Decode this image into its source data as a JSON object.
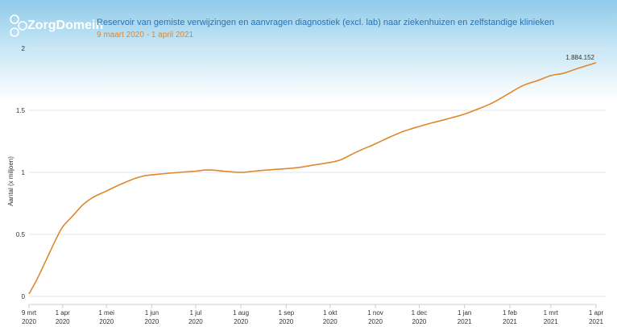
{
  "header": {
    "brand": "ZorgDomein",
    "title": "Reservoir van gemiste verwijzingen en aanvragen diagnostiek (excl. lab) naar ziekenhuizen en zelfstandige klinieken",
    "subtitle": "9 maart 2020 - 1 april 2021",
    "title_color": "#2a73b6",
    "subtitle_color": "#e0862c"
  },
  "chart_data": {
    "type": "line",
    "title": "Reservoir van gemiste verwijzingen en aanvragen diagnostiek (excl. lab) naar ziekenhuizen en zelfstandige klinieken",
    "subtitle": "9 maart 2020 - 1 april 2021",
    "xlabel": "",
    "ylabel": "Aantal (x miljoen)",
    "ylim": [
      0,
      2
    ],
    "yticks": [
      "0",
      "0.5",
      "1",
      "1.5",
      "2"
    ],
    "xlim": [
      "2020-03-09",
      "2021-04-01"
    ],
    "xticks": [
      {
        "date": "2020-03-09",
        "line1": "9 mrt",
        "line2": "2020"
      },
      {
        "date": "2020-04-01",
        "line1": "1 apr",
        "line2": "2020"
      },
      {
        "date": "2020-05-01",
        "line1": "1 mei",
        "line2": "2020"
      },
      {
        "date": "2020-06-01",
        "line1": "1 jun",
        "line2": "2020"
      },
      {
        "date": "2020-07-01",
        "line1": "1 jul",
        "line2": "2020"
      },
      {
        "date": "2020-08-01",
        "line1": "1 aug",
        "line2": "2020"
      },
      {
        "date": "2020-09-01",
        "line1": "1 sep",
        "line2": "2020"
      },
      {
        "date": "2020-10-01",
        "line1": "1 okt",
        "line2": "2020"
      },
      {
        "date": "2020-11-01",
        "line1": "1 nov",
        "line2": "2020"
      },
      {
        "date": "2020-12-01",
        "line1": "1 dec",
        "line2": "2020"
      },
      {
        "date": "2021-01-01",
        "line1": "1 jan",
        "line2": "2021"
      },
      {
        "date": "2021-02-01",
        "line1": "1 feb",
        "line2": "2021"
      },
      {
        "date": "2021-03-01",
        "line1": "1 mrt",
        "line2": "2021"
      },
      {
        "date": "2021-04-01",
        "line1": "1 apr",
        "line2": "2021"
      }
    ],
    "grid": true,
    "color": "#e0862c",
    "end_label": "1.884.152",
    "series": [
      {
        "x": [
          "2020-03-09",
          "2020-03-15",
          "2020-03-21",
          "2020-03-27",
          "2020-04-01",
          "2020-04-08",
          "2020-04-15",
          "2020-04-22",
          "2020-05-01",
          "2020-05-10",
          "2020-05-18",
          "2020-05-26",
          "2020-06-01",
          "2020-06-10",
          "2020-06-20",
          "2020-07-01",
          "2020-07-10",
          "2020-07-20",
          "2020-08-01",
          "2020-08-10",
          "2020-08-20",
          "2020-09-01",
          "2020-09-10",
          "2020-09-20",
          "2020-10-01",
          "2020-10-08",
          "2020-10-15",
          "2020-10-22",
          "2020-11-01",
          "2020-11-10",
          "2020-11-20",
          "2020-12-01",
          "2020-12-10",
          "2020-12-20",
          "2021-01-01",
          "2021-01-10",
          "2021-01-20",
          "2021-02-01",
          "2021-02-10",
          "2021-02-20",
          "2021-03-01",
          "2021-03-10",
          "2021-03-20",
          "2021-04-01"
        ],
        "y": [
          0.02,
          0.15,
          0.3,
          0.45,
          0.56,
          0.65,
          0.74,
          0.8,
          0.85,
          0.9,
          0.94,
          0.97,
          0.98,
          0.99,
          1.0,
          1.01,
          1.02,
          1.01,
          1.0,
          1.01,
          1.02,
          1.03,
          1.04,
          1.06,
          1.08,
          1.1,
          1.14,
          1.18,
          1.23,
          1.28,
          1.33,
          1.37,
          1.4,
          1.43,
          1.47,
          1.51,
          1.56,
          1.64,
          1.7,
          1.74,
          1.78,
          1.8,
          1.84,
          1.884
        ]
      }
    ]
  }
}
